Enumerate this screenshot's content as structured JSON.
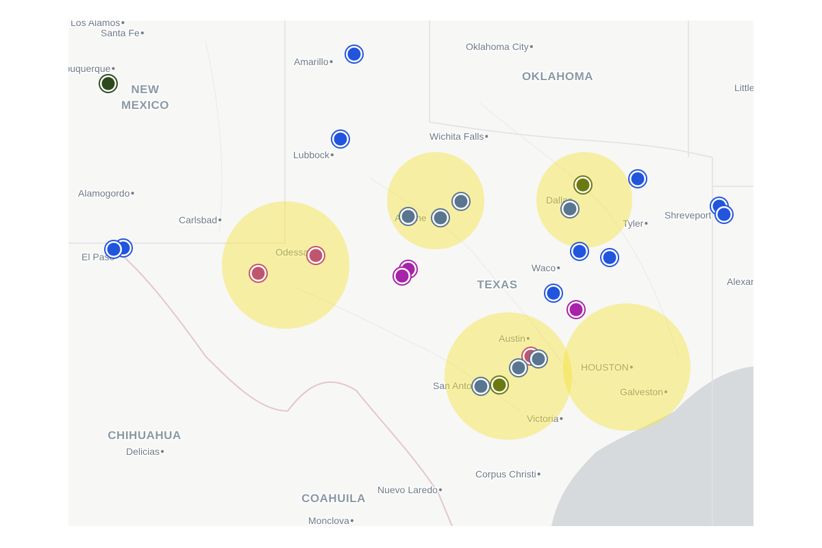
{
  "places": [
    "Los Alamos",
    "Santa Fe",
    "Albuquerque",
    "Amarillo",
    "Oklahoma City",
    "Little Rock",
    "Lubbock",
    "Wichita Falls",
    "Alamogordo",
    "Carlsbad",
    "Odessa",
    "Abilene",
    "Dallas",
    "Tyler",
    "Shreveport",
    "El Paso",
    "Waco",
    "Alexandria",
    "Austin",
    "San Antonio",
    "HOUSTON",
    "Galveston",
    "Victoria",
    "Delicias",
    "Corpus Christi",
    "Nuevo Laredo",
    "Monclova"
  ],
  "regions": [
    "NEW MEXICO",
    "OKLAHOMA",
    "TEXAS",
    "CHIHUAHUA",
    "COAHUILA"
  ]
}
